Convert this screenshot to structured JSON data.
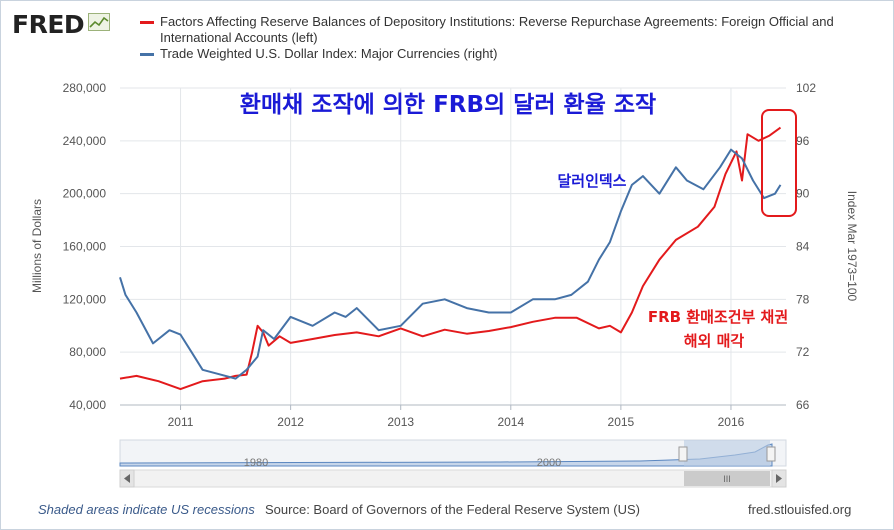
{
  "header": {
    "logo_text": "FRED",
    "logo_icon": "line-graph-icon"
  },
  "legend": [
    {
      "label": "Factors Affecting Reserve Balances of Depository Institutions: Reverse Repurchase Agreements: Foreign Official and International Accounts (left)",
      "color": "#e31a1c"
    },
    {
      "label": "Trade Weighted U.S. Dollar Index: Major Currencies (right)",
      "color": "#4572a7"
    }
  ],
  "annotations": {
    "title": "환매채 조작에 의한 FRB의 달러 환율 조작",
    "dollar_index_label": "달러인덱스",
    "repo_label_line1": "FRB 환매조건부 채권",
    "repo_label_line2": "해외 매각",
    "title_color": "#1a1ad6",
    "highlight_color": "#e31a1c"
  },
  "navigator": {
    "labels": [
      "1980",
      "2000"
    ],
    "scroll_glyph": "III"
  },
  "footer": {
    "note": "Shaded areas indicate US recessions",
    "source": "Source: Board of Governors of the Federal Reserve System (US)",
    "url": "fred.stlouisfed.org"
  },
  "chart_data": {
    "type": "line",
    "title": "",
    "xlabel": "",
    "ylabel": "Millions of Dollars",
    "y2label": "Index Mar 1973=100",
    "xlim": [
      2010.45,
      2016.5
    ],
    "ylim": [
      40000,
      280000
    ],
    "y2lim": [
      66,
      102
    ],
    "x_ticks": [
      "2011",
      "2012",
      "2013",
      "2014",
      "2015",
      "2016"
    ],
    "y_ticks": [
      "40,000",
      "80,000",
      "120,000",
      "160,000",
      "200,000",
      "240,000",
      "280,000"
    ],
    "y2_ticks": [
      "66",
      "72",
      "78",
      "84",
      "90",
      "96",
      "102"
    ],
    "grid": true,
    "series": [
      {
        "name": "Factors Affecting Reserve Balances of Depository Institutions: Reverse Repurchase Agreements: Foreign Official and International Accounts (left)",
        "axis": "left",
        "color": "#e31a1c",
        "x": [
          2010.45,
          2010.6,
          2010.8,
          2011.0,
          2011.2,
          2011.4,
          2011.5,
          2011.6,
          2011.65,
          2011.7,
          2011.75,
          2011.8,
          2011.9,
          2012.0,
          2012.2,
          2012.4,
          2012.6,
          2012.8,
          2013.0,
          2013.2,
          2013.4,
          2013.6,
          2013.8,
          2014.0,
          2014.2,
          2014.4,
          2014.6,
          2014.8,
          2014.9,
          2015.0,
          2015.1,
          2015.2,
          2015.35,
          2015.5,
          2015.7,
          2015.85,
          2015.95,
          2016.05,
          2016.1,
          2016.15,
          2016.25,
          2016.35,
          2016.45
        ],
        "y": [
          60000,
          62000,
          58000,
          52000,
          58000,
          60000,
          62000,
          63000,
          80000,
          100000,
          95000,
          85000,
          92000,
          87000,
          90000,
          93000,
          95000,
          92000,
          98000,
          92000,
          97000,
          94000,
          96000,
          99000,
          103000,
          106000,
          106000,
          98000,
          100000,
          95000,
          110000,
          130000,
          150000,
          165000,
          175000,
          190000,
          215000,
          232000,
          210000,
          245000,
          240000,
          244000,
          250000
        ]
      },
      {
        "name": "Trade Weighted U.S. Dollar Index: Major Currencies (right)",
        "axis": "right",
        "color": "#4572a7",
        "x": [
          2010.45,
          2010.5,
          2010.6,
          2010.75,
          2010.9,
          2011.0,
          2011.1,
          2011.2,
          2011.35,
          2011.5,
          2011.6,
          2011.7,
          2011.75,
          2011.85,
          2012.0,
          2012.2,
          2012.4,
          2012.5,
          2012.6,
          2012.8,
          2013.0,
          2013.2,
          2013.4,
          2013.6,
          2013.8,
          2014.0,
          2014.2,
          2014.4,
          2014.55,
          2014.7,
          2014.8,
          2014.9,
          2015.0,
          2015.1,
          2015.2,
          2015.35,
          2015.5,
          2015.6,
          2015.75,
          2015.9,
          2016.0,
          2016.1,
          2016.2,
          2016.3,
          2016.4,
          2016.45
        ],
        "y": [
          80.5,
          78.5,
          76.5,
          73.0,
          74.5,
          74.0,
          72.0,
          70.0,
          69.5,
          69.0,
          70.0,
          71.5,
          74.5,
          73.5,
          76.0,
          75.0,
          76.5,
          76.0,
          77.0,
          74.5,
          75.0,
          77.5,
          78.0,
          77.0,
          76.5,
          76.5,
          78.0,
          78.0,
          78.5,
          80.0,
          82.5,
          84.5,
          88.0,
          91.0,
          92.0,
          90.0,
          93.0,
          91.5,
          90.5,
          93.0,
          95.0,
          94.0,
          91.5,
          89.5,
          90.0,
          91.0
        ]
      }
    ]
  }
}
